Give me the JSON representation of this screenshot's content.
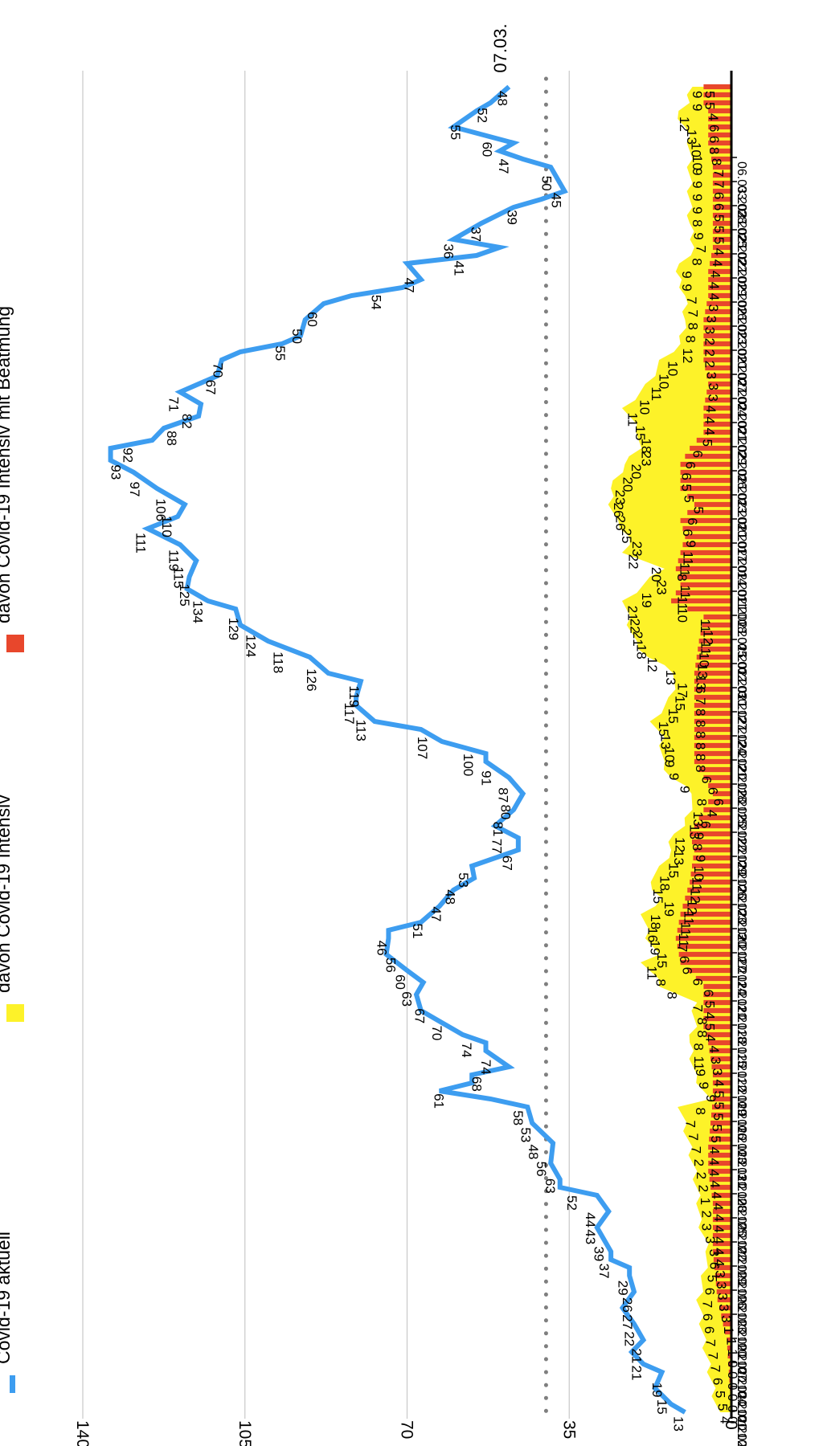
{
  "chart_data": {
    "type": "line",
    "title": "",
    "xlabel": "",
    "ylabel": "",
    "orientation": "rotated 90 degrees clockwise",
    "ylim": [
      0,
      140
    ],
    "y_ticks": [
      0,
      35,
      70,
      105,
      140
    ],
    "grid": true,
    "legend_placement": "top",
    "reference_line": {
      "value": 40,
      "style": "dotted",
      "color": "#7f7f7f"
    },
    "marker_label": "07.03.",
    "x_tick_labels": [
      "01.10.2020",
      "04.10.2020",
      "07.10.2020",
      "10.10.2020",
      "13.10.2020",
      "16.10.2020",
      "19.10.2020",
      "22.10.2020",
      "25.10.2020",
      "28.10.2020",
      "31.10.2020",
      "03.11.2020",
      "06.11.2020",
      "09.11.2020",
      "12.11.2020",
      "15.11.2020",
      "18.11.2020",
      "21.11.2020",
      "24.11.2020",
      "27.11.2020",
      "30.11.2020",
      "03.12.2020",
      "06.12.2020",
      "09.12.2020",
      "12.12.2020",
      "15.12.2020",
      "18.12.2020",
      "21.12.2020",
      "24.12.2020",
      "27.12.2020",
      "30.12.2020",
      "02.01.2021",
      "05.01.2021",
      "08.01.2021",
      "11.01.2021",
      "14.01.2021",
      "17.01.2021",
      "20.01.2021",
      "23.01.2021",
      "26.01.2021",
      "29.01.2021",
      "01.02.2021",
      "04.02.2021",
      "07.02.2021",
      "10.02.2021",
      "13.02.2021",
      "16.02.2021",
      "19.02.2021",
      "22.02.2021",
      "25.02.2021",
      "28.02.2021",
      "03.03.2021",
      "06.03.2021"
    ],
    "series": [
      {
        "name": "Covid-19 aktuell",
        "color": "#3d9df0",
        "kind": "line",
        "x": [
          0,
          1,
          5,
          6,
          9,
          11,
          15,
          17,
          18,
          19,
          20,
          21,
          23,
          27,
          28,
          29,
          31,
          36,
          38,
          39,
          40,
          41,
          42,
          43,
          45,
          46,
          47,
          48,
          52,
          55,
          59,
          60,
          61,
          63,
          65,
          68,
          70,
          73,
          75,
          79,
          81,
          82,
          85,
          86,
          88,
          89,
          91,
          92,
          94,
          96,
          100,
          101,
          104,
          108,
          110,
          113,
          115,
          117,
          120,
          121,
          124,
          127,
          129,
          131,
          132,
          133,
          134,
          136,
          138,
          139,
          140,
          141,
          143,
          144,
          145,
          146,
          148,
          150,
          151,
          152,
          153,
          155,
          156,
          157,
          158,
          160,
          162,
          163,
          165
        ],
        "values": [
          10,
          13,
          15,
          19,
          19,
          21,
          21,
          22,
          22,
          26,
          26,
          27,
          29,
          29,
          37,
          37,
          39,
          43,
          44,
          52,
          63,
          56,
          56,
          48,
          53,
          53,
          58,
          61,
          68,
          70,
          74,
          74,
          67,
          63,
          60,
          56,
          46,
          51,
          47,
          48,
          53,
          53,
          67,
          77,
          81,
          81,
          80,
          87,
          91,
          100,
          107,
          113,
          117,
          119,
          126,
          118,
          124,
          129,
          134,
          125,
          115,
          119,
          111,
          110,
          106,
          97,
          93,
          92,
          88,
          82,
          71,
          67,
          70,
          55,
          50,
          60,
          54,
          47,
          41,
          36,
          37,
          39,
          45,
          50,
          47,
          60,
          55,
          52,
          48
        ]
      },
      {
        "name": "davon Covid-19 Intensiv",
        "color": "#fdf229",
        "kind": "area",
        "x": [
          0,
          9,
          14,
          20,
          24,
          26,
          30,
          33,
          38,
          39,
          42,
          46,
          48,
          51,
          53,
          56,
          57,
          59,
          62,
          64,
          66,
          68,
          70,
          72,
          73,
          75,
          77,
          79,
          81,
          84,
          86,
          89,
          92,
          94,
          96,
          98,
          101,
          103,
          105,
          107,
          109,
          111,
          113,
          115,
          118,
          120,
          122,
          125,
          128,
          131,
          133,
          136,
          139,
          142,
          145,
          148,
          151,
          155,
          158,
          160,
          162,
          163,
          165
        ],
        "values": [
          3,
          6,
          7,
          5,
          7,
          7,
          8,
          9,
          11,
          5,
          8,
          9,
          8,
          8,
          15,
          19,
          16,
          18,
          19,
          15,
          18,
          15,
          13,
          13,
          10,
          9,
          8,
          13,
          15,
          15,
          17,
          13,
          12,
          18,
          21,
          22,
          23,
          19,
          15,
          23,
          22,
          25,
          26,
          26,
          23,
          20,
          20,
          23,
          18,
          15,
          11,
          10,
          10,
          12,
          8,
          9,
          9,
          9,
          9,
          10,
          12,
          9,
          9
        ]
      },
      {
        "name": "davon Covid-19 Intensiv mit Beatmung",
        "color": "#e8472c",
        "kind": "bars",
        "x": [
          0,
          9,
          14,
          20,
          26,
          30,
          33,
          39,
          42,
          46,
          48,
          53,
          56,
          59,
          62,
          64,
          66,
          70,
          72,
          75,
          77,
          79,
          81,
          84,
          86,
          89,
          92,
          96,
          99,
          101,
          103,
          105,
          107,
          109,
          111,
          113,
          115,
          118,
          120,
          122,
          125,
          128,
          131,
          133,
          136,
          139,
          142,
          145,
          148,
          151,
          155,
          158,
          160,
          162,
          163,
          165
        ],
        "values": [
          0,
          1,
          3,
          4,
          4,
          5,
          5,
          4,
          4,
          5,
          6,
          6,
          11,
          12,
          11,
          10,
          9,
          8,
          9,
          6,
          4,
          6,
          8,
          8,
          8,
          8,
          8,
          7,
          6,
          13,
          11,
          12,
          11,
          10,
          11,
          8,
          11,
          11,
          9,
          6,
          6,
          5,
          6,
          6,
          6,
          5,
          5,
          4,
          4,
          4,
          4,
          5,
          5,
          5,
          6,
          6
        ]
      }
    ],
    "data_labels": {
      "aktuell": [
        "13",
        "15",
        "19",
        "21",
        "21",
        "22",
        "27",
        "26",
        "29",
        "37",
        "39",
        "43",
        "44",
        "52",
        "63",
        "56",
        "48",
        "53",
        "58",
        "61",
        "68",
        "74",
        "74",
        "70",
        "67",
        "63",
        "60",
        "56",
        "46",
        "51",
        "47",
        "48",
        "53",
        "67",
        "77",
        "81",
        "80",
        "87",
        "91",
        "100",
        "107",
        "113",
        "117",
        "119",
        "126",
        "118",
        "124",
        "129",
        "134",
        "125",
        "115",
        "119",
        "111",
        "110",
        "106",
        "97",
        "93",
        "92",
        "88",
        "82",
        "71",
        "67",
        "70",
        "55",
        "50",
        "60",
        "54",
        "47",
        "41",
        "36",
        "37",
        "39",
        "45",
        "50",
        "47",
        "60",
        "55",
        "52",
        "48"
      ],
      "intensiv": [
        "4",
        "5",
        "5",
        "6",
        "7",
        "7",
        "7",
        "6",
        "6",
        "7",
        "6",
        "5",
        "6",
        "3",
        "3",
        "3",
        "2",
        "1",
        "2",
        "2",
        "2",
        "7",
        "7",
        "7",
        "8",
        "9",
        "9",
        "9",
        "11",
        "8",
        "8",
        "8",
        "7",
        "8",
        "8",
        "11",
        "15",
        "19",
        "16",
        "18",
        "19",
        "15",
        "18",
        "15",
        "13",
        "12",
        "13",
        "13",
        "8",
        "9",
        "9",
        "9",
        "10",
        "13",
        "15",
        "15",
        "15",
        "17",
        "13",
        "12",
        "18",
        "21",
        "22",
        "21",
        "19",
        "23",
        "20",
        "22",
        "23",
        "25",
        "26",
        "26",
        "23",
        "20",
        "20",
        "23",
        "18",
        "15",
        "11",
        "10",
        "11",
        "10",
        "10",
        "12",
        "8",
        "8",
        "7",
        "7",
        "9",
        "9",
        "8",
        "7",
        "9",
        "8",
        "9",
        "9",
        "9",
        "9",
        "10",
        "10",
        "13",
        "12",
        "9",
        "9"
      ],
      "beatmung": [
        "0",
        "0",
        "0",
        "0",
        "0",
        "0",
        "1",
        "1",
        "1",
        "3",
        "3",
        "3",
        "3",
        "3",
        "4",
        "4",
        "4",
        "4",
        "4",
        "4",
        "4",
        "4",
        "4",
        "4",
        "4",
        "5",
        "5",
        "5",
        "5",
        "5",
        "4",
        "3",
        "3",
        "4",
        "4",
        "5",
        "4",
        "5",
        "6",
        "6",
        "6",
        "6",
        "7",
        "11",
        "11",
        "11",
        "12",
        "12",
        "11",
        "10",
        "9",
        "8",
        "9",
        "6",
        "4",
        "6",
        "6",
        "6",
        "8",
        "8",
        "8",
        "8",
        "8",
        "8",
        "7",
        "6",
        "13",
        "13",
        "10",
        "11",
        "12",
        "11",
        "10",
        "11",
        "11",
        "8",
        "11",
        "11",
        "9",
        "6",
        "6",
        "5",
        "5",
        "5",
        "6",
        "6",
        "6",
        "5",
        "4",
        "4",
        "4",
        "3",
        "3",
        "3",
        "2",
        "2",
        "2",
        "3",
        "3",
        "3",
        "4",
        "4",
        "4",
        "4",
        "4",
        "5",
        "5",
        "5",
        "6",
        "6",
        "7",
        "7",
        "8",
        "8",
        "6",
        "6",
        "4",
        "5",
        "5"
      ]
    }
  },
  "legend": [
    {
      "label": "Covid-19 aktuell",
      "color": "#3d9df0",
      "shape": "line"
    },
    {
      "label": "davon Covid-19 Intensiv",
      "color": "#fdf229",
      "shape": "square"
    },
    {
      "label": "davon Covid-19 Intensiv mit Beatmung",
      "color": "#e8472c",
      "shape": "square"
    }
  ]
}
